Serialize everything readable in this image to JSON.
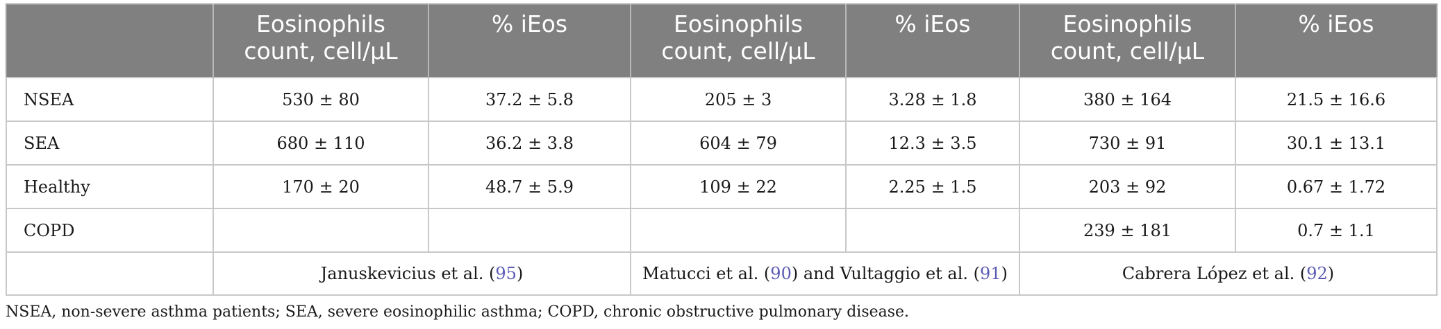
{
  "headers": [
    "",
    "Eosinophils count, cell/µL",
    "% iEos",
    "Eosinophils count, cell/µL",
    "% iEos",
    "Eosinophils count, cell/µL",
    "% iEos"
  ],
  "rows": [
    {
      "label": "NSEA",
      "cells": [
        "530 ± 80",
        "37.2 ± 5.8",
        "205 ± 3",
        "3.28 ± 1.8",
        "380 ± 164",
        "21.5 ± 16.6"
      ]
    },
    {
      "label": "SEA",
      "cells": [
        "680 ± 110",
        "36.2 ± 3.8",
        "604 ± 79",
        "12.3 ± 3.5",
        "730 ± 91",
        "30.1 ± 13.1"
      ]
    },
    {
      "label": "Healthy",
      "cells": [
        "170 ± 20",
        "48.7 ± 5.9",
        "109 ± 22",
        "2.25 ± 1.5",
        "203 ± 92",
        "0.67 ± 1.72"
      ]
    },
    {
      "label": "COPD",
      "cells": [
        "",
        "",
        "",
        "",
        "239 ± 181",
        "0.7 ± 1.1"
      ]
    }
  ],
  "sources": {
    "januskevicius": {
      "text": "Januskevicius et al. (",
      "ref": "95",
      "close": ")"
    },
    "matucci": {
      "text1": "Matucci et al. (",
      "ref1": "90",
      "text2": ") and Vultaggio et al. (",
      "ref2": "91",
      "close": ")"
    },
    "cabrera": {
      "text": "Cabrera López et al. (",
      "ref": "92",
      "close": ")"
    }
  },
  "footnote": "NSEA, non-severe asthma patients; SEA, severe eosinophilic asthma; COPD, chronic obstructive pulmonary disease.",
  "colors": {
    "header_bg": "#808080",
    "header_text": "#ffffff",
    "ref_link": "#5a5ab4"
  }
}
